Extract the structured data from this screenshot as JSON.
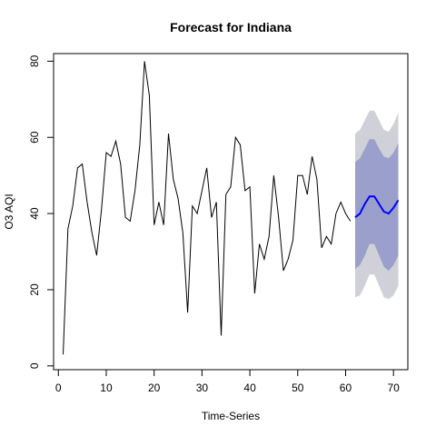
{
  "chart_data": {
    "type": "line",
    "title": "Forecast for Indiana",
    "xlabel": "Time-Series",
    "ylabel": "O3 AQI",
    "xlim": [
      -1,
      73
    ],
    "ylim": [
      -1,
      82
    ],
    "xticks": [
      0,
      10,
      20,
      30,
      40,
      50,
      60,
      70
    ],
    "yticks": [
      0,
      20,
      40,
      60,
      80
    ],
    "grid": false,
    "legend": "none",
    "colors": {
      "history": "#000000",
      "forecast": "#0000ff",
      "band80": "#9aa0cb",
      "band95": "#d0d0d8"
    },
    "series": [
      {
        "role": "history",
        "x": [
          1,
          2,
          3,
          4,
          5,
          6,
          7,
          8,
          9,
          10,
          11,
          12,
          13,
          14,
          15,
          16,
          17,
          18,
          19,
          20,
          21,
          22,
          23,
          24,
          25,
          26,
          27,
          28,
          29,
          30,
          31,
          32,
          33,
          34,
          35,
          36,
          37,
          38,
          39,
          40,
          41,
          42,
          43,
          44,
          45,
          46,
          47,
          48,
          49,
          50,
          51,
          52,
          53,
          54,
          55,
          56,
          57,
          58,
          59,
          60,
          61
        ],
        "values": [
          3,
          36,
          42,
          52,
          53,
          43,
          35,
          29,
          41,
          56,
          55,
          59,
          53,
          39,
          38,
          46,
          58,
          80,
          71,
          37,
          43,
          37,
          61,
          49,
          44,
          35,
          14,
          42,
          40,
          46,
          52,
          39,
          43,
          8,
          45,
          47,
          60,
          58,
          46,
          47,
          19,
          32,
          28,
          34,
          50,
          39,
          25,
          28,
          33,
          50,
          50,
          45,
          55,
          49,
          31,
          34,
          32,
          40,
          43,
          40,
          38
        ]
      },
      {
        "role": "forecast",
        "x": [
          62,
          63,
          64,
          65,
          66,
          67,
          68,
          69,
          70,
          71
        ],
        "values": [
          39,
          40,
          42.5,
          44.5,
          44.5,
          42.5,
          40.5,
          40,
          41.5,
          43.5
        ],
        "lower80": [
          25.5,
          26.5,
          29,
          32,
          32,
          29,
          26,
          25,
          26.5,
          29
        ],
        "upper80": [
          53.5,
          54.5,
          57,
          59.5,
          59.5,
          57,
          55,
          54.5,
          56,
          58.5
        ],
        "lower95": [
          18,
          18.5,
          21,
          24,
          24,
          21,
          18,
          17.5,
          18.5,
          21
        ],
        "upper95": [
          61,
          62,
          64.5,
          67,
          67,
          64.5,
          62,
          61.5,
          63.5,
          66.5
        ]
      }
    ]
  }
}
